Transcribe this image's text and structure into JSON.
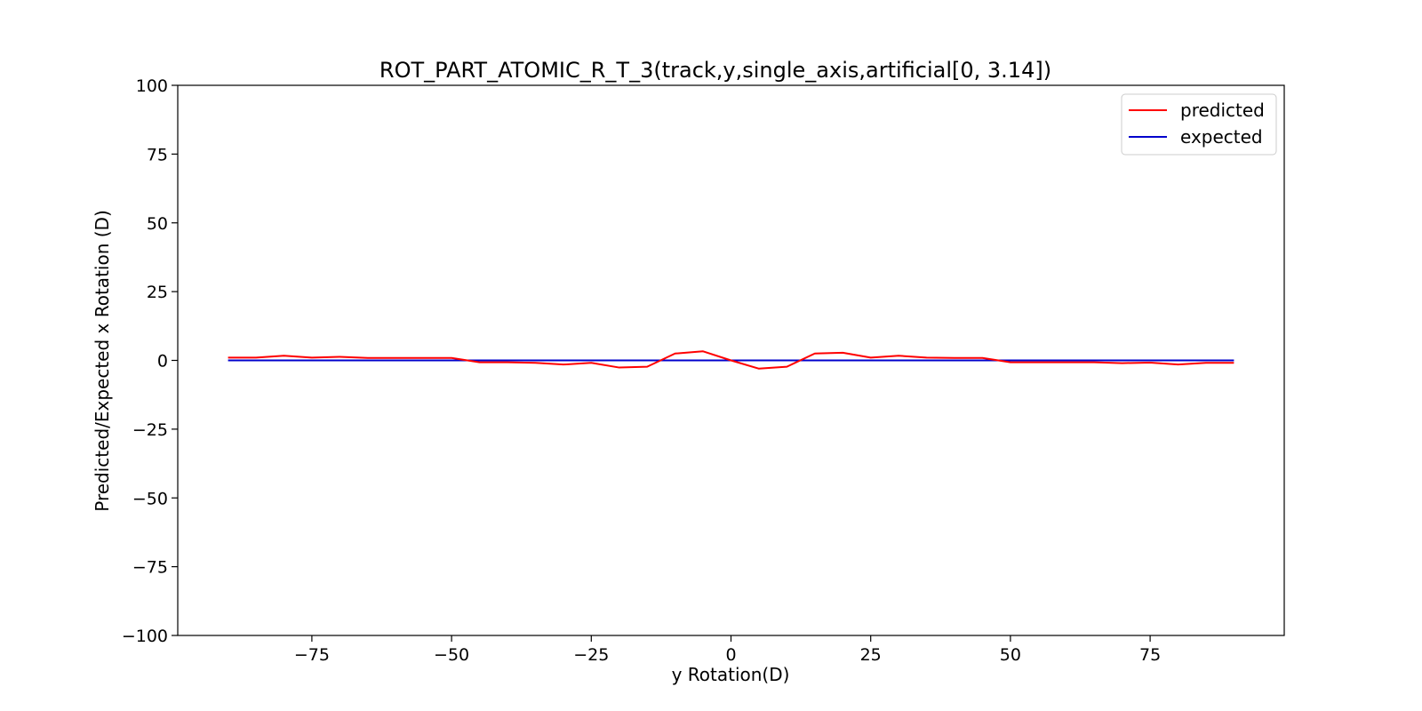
{
  "chart_data": {
    "type": "line",
    "title": "ROT_PART_ATOMIC_R_T_3(track,y,single_axis,artificial[0, 3.14])",
    "xlabel": "y Rotation(D)",
    "ylabel": "Predicted/Expected x Rotation (D)",
    "xlim": [
      -99,
      99
    ],
    "ylim": [
      -100,
      100
    ],
    "xticks": [
      -75,
      -50,
      -25,
      0,
      25,
      50,
      75
    ],
    "xtick_labels": [
      "−75",
      "−50",
      "−25",
      "0",
      "25",
      "50",
      "75"
    ],
    "yticks": [
      100,
      75,
      50,
      25,
      0,
      -25,
      -50,
      -75,
      -100
    ],
    "ytick_labels": [
      "100",
      "75",
      "50",
      "25",
      "0",
      "−25",
      "−50",
      "−75",
      "−100"
    ],
    "legend_position": "top-right",
    "grid": false,
    "x": [
      -90,
      -85,
      -80,
      -75,
      -70,
      -65,
      -60,
      -55,
      -50,
      -45,
      -40,
      -35,
      -30,
      -25,
      -20,
      -15,
      -10,
      -5,
      0,
      5,
      10,
      15,
      20,
      25,
      30,
      35,
      40,
      45,
      50,
      55,
      60,
      65,
      70,
      75,
      80,
      85,
      90
    ],
    "series": [
      {
        "name": "predicted",
        "color": "#ff0000",
        "values": [
          1.0,
          1.0,
          1.7,
          1.0,
          1.3,
          0.9,
          0.9,
          0.9,
          0.9,
          -0.7,
          -0.7,
          -0.9,
          -1.5,
          -0.9,
          -2.6,
          -2.3,
          2.5,
          3.3,
          0.0,
          -3.0,
          -2.3,
          2.5,
          2.8,
          1.0,
          1.7,
          1.0,
          0.9,
          0.9,
          -0.7,
          -0.7,
          -0.7,
          -0.7,
          -1.0,
          -0.8,
          -1.5,
          -0.9,
          -0.9
        ]
      },
      {
        "name": "expected",
        "color": "#0000cc",
        "values": [
          0,
          0,
          0,
          0,
          0,
          0,
          0,
          0,
          0,
          0,
          0,
          0,
          0,
          0,
          0,
          0,
          0,
          0,
          0,
          0,
          0,
          0,
          0,
          0,
          0,
          0,
          0,
          0,
          0,
          0,
          0,
          0,
          0,
          0,
          0,
          0,
          0
        ]
      }
    ]
  }
}
